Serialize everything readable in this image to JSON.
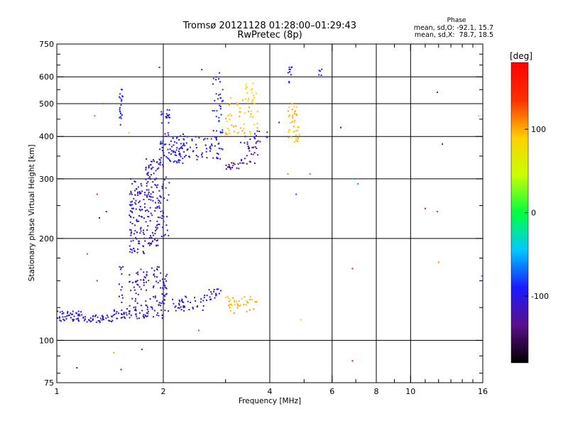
{
  "chart_data": {
    "type": "scatter",
    "title": "Tromsø 20121128 01:28:00–01:29:43",
    "subtitle": "RwPretec (8p)",
    "xlabel": "Frequency [MHz]",
    "ylabel": "Stationary phase Virtual Height [km]",
    "x_scale": "log",
    "y_scale": "log",
    "xlim": [
      1,
      16
    ],
    "ylim": [
      75,
      750
    ],
    "grid": true,
    "x_ticks": [
      {
        "value": 1,
        "label": "1"
      },
      {
        "value": 2,
        "label": "2"
      },
      {
        "value": 4,
        "label": "4"
      },
      {
        "value": 6,
        "label": "6"
      },
      {
        "value": 8,
        "label": "8"
      },
      {
        "value": 10,
        "label": "10"
      },
      {
        "value": 16,
        "label": "16"
      }
    ],
    "x_minor_ticks": [
      3,
      5,
      7,
      9,
      11,
      12,
      13,
      14,
      15
    ],
    "x_grid_lines": [
      2,
      4,
      6,
      8,
      10
    ],
    "y_ticks": [
      {
        "value": 75,
        "label": "75"
      },
      {
        "value": 100,
        "label": "100"
      },
      {
        "value": 200,
        "label": "200"
      },
      {
        "value": 300,
        "label": "300"
      },
      {
        "value": 400,
        "label": "400"
      },
      {
        "value": 500,
        "label": "500"
      },
      {
        "value": 600,
        "label": "600"
      },
      {
        "value": 750,
        "label": "750"
      }
    ],
    "y_minor_ticks": [
      80,
      90,
      125,
      150,
      175,
      250,
      350,
      450,
      550,
      650,
      700
    ],
    "y_grid_lines": [
      100,
      200,
      300,
      400,
      500,
      600
    ],
    "stats": {
      "heading": "Phase",
      "line_o": "mean, sd,O: -92.1, 15.7",
      "line_x": "mean, sd,X:  78.7, 18.5"
    },
    "colorbar": {
      "label": "[deg]",
      "range": [
        -180,
        180
      ],
      "ticks": [
        {
          "value": 100,
          "label": "100"
        },
        {
          "value": 0,
          "label": "0"
        },
        {
          "value": -100,
          "label": "-100"
        }
      ],
      "colors": [
        "#000000",
        "#5a0f8a",
        "#1a1aff",
        "#00c8ff",
        "#00ff40",
        "#c8ff00",
        "#ffd000",
        "#ff3000",
        "#ff0000"
      ]
    },
    "clusters": [
      {
        "x": [
          1.0,
          1.18
        ],
        "y": [
          114,
          122
        ],
        "phase": -100,
        "n": 45,
        "role": "O-mode E trace 1.0–1.2 MHz"
      },
      {
        "x": [
          1.18,
          1.45
        ],
        "y": [
          113,
          119
        ],
        "phase": -105,
        "n": 40,
        "role": "O-mode E trace 1.2–1.45 MHz"
      },
      {
        "x": [
          1.45,
          2.0
        ],
        "y": [
          116,
          124
        ],
        "phase": -110,
        "n": 60,
        "role": "O-mode E trace 1.45–2.0 MHz"
      },
      {
        "x": [
          2.0,
          2.6
        ],
        "y": [
          122,
          135
        ],
        "phase": -105,
        "n": 45,
        "role": "O-mode E trace 2.0–2.6 MHz"
      },
      {
        "x": [
          2.6,
          2.95
        ],
        "y": [
          130,
          142
        ],
        "phase": -100,
        "n": 20,
        "role": "O-mode E trace near 2.8 MHz"
      },
      {
        "x": [
          1.6,
          1.95
        ],
        "y": [
          125,
          165
        ],
        "phase": -115,
        "n": 70,
        "role": "E-layer spread 1.6–1.95 MHz"
      },
      {
        "x": [
          1.95,
          2.05
        ],
        "y": [
          125,
          160
        ],
        "phase": -110,
        "n": 30,
        "role": "E-layer spread near 2 MHz"
      },
      {
        "x": [
          1.6,
          1.78
        ],
        "y": [
          180,
          300
        ],
        "phase": -105,
        "n": 110,
        "role": "F-layer spread 1.6–1.78 MHz"
      },
      {
        "x": [
          1.78,
          1.95
        ],
        "y": [
          190,
          300
        ],
        "phase": -108,
        "n": 80,
        "role": "F-layer spread 1.78–1.95 MHz"
      },
      {
        "x": [
          1.95,
          2.08
        ],
        "y": [
          200,
          330
        ],
        "phase": -100,
        "n": 35,
        "role": "F-layer spread near 2 MHz"
      },
      {
        "x": [
          1.78,
          2.0
        ],
        "y": [
          300,
          345
        ],
        "phase": -100,
        "n": 35,
        "role": "F-layer spread top"
      },
      {
        "x": [
          1.95,
          2.3
        ],
        "y": [
          330,
          410
        ],
        "phase": -95,
        "n": 80,
        "role": "F-layer cluster near 2.1 MHz"
      },
      {
        "x": [
          1.95,
          2.1
        ],
        "y": [
          430,
          480
        ],
        "phase": -95,
        "n": 18,
        "role": "F-layer blob near 2 MHz"
      },
      {
        "x": [
          2.2,
          2.95
        ],
        "y": [
          340,
          400
        ],
        "phase": -95,
        "n": 60,
        "role": "O-mode F trace 2.2–2.95 MHz"
      },
      {
        "x": [
          2.75,
          2.95
        ],
        "y": [
          400,
          620
        ],
        "phase": -90,
        "n": 35,
        "role": "O-mode F2 cusp"
      },
      {
        "x": [
          1.5,
          1.54
        ],
        "y": [
          420,
          560
        ],
        "phase": -95,
        "n": 20,
        "role": "near 1.5 MHz vertical streak"
      },
      {
        "x": [
          1.5,
          1.54
        ],
        "y": [
          120,
          165
        ],
        "phase": -110,
        "n": 12,
        "role": "near 1.5 MHz low streak"
      },
      {
        "x": [
          3.0,
          3.3
        ],
        "y": [
          320,
          340
        ],
        "phase": -130,
        "n": 18,
        "role": "X-mode F trace 3.0–3.3 MHz"
      },
      {
        "x": [
          3.3,
          3.7
        ],
        "y": [
          330,
          400
        ],
        "phase": -130,
        "n": 30,
        "role": "X-mode F trace 3.3–3.7 MHz"
      },
      {
        "x": [
          3.0,
          3.7
        ],
        "y": [
          400,
          520
        ],
        "phase": 95,
        "n": 55,
        "role": "X-mode F trace 3.0–3.7 MHz"
      },
      {
        "x": [
          3.4,
          3.7
        ],
        "y": [
          520,
          580
        ],
        "phase": 80,
        "n": 12,
        "role": "X-mode F2 cusp"
      },
      {
        "x": [
          3.0,
          3.7
        ],
        "y": [
          120,
          135
        ],
        "phase": 100,
        "n": 40,
        "role": "X-mode E trace"
      },
      {
        "x": [
          3.6,
          4.0
        ],
        "y": [
          380,
          420
        ],
        "phase": -110,
        "n": 12,
        "role": "3.6–4.0 MHz cluster"
      },
      {
        "x": [
          4.5,
          4.85
        ],
        "y": [
          380,
          500
        ],
        "phase": 95,
        "n": 40,
        "role": "4.5–4.85 MHz cluster"
      },
      {
        "x": [
          4.5,
          4.65
        ],
        "y": [
          560,
          650
        ],
        "phase": -100,
        "n": 10,
        "role": "4.5 MHz high cluster"
      },
      {
        "x": [
          5.5,
          5.65
        ],
        "y": [
          600,
          640
        ],
        "phase": -100,
        "n": 5,
        "role": "5.5 MHz high cluster"
      }
    ],
    "scatter_points": [
      {
        "x": 1.14,
        "y": 83,
        "phase": -120
      },
      {
        "x": 1.3,
        "y": 270,
        "phase": 160
      },
      {
        "x": 1.32,
        "y": 230,
        "phase": -150
      },
      {
        "x": 1.35,
        "y": 500,
        "phase": 130
      },
      {
        "x": 1.22,
        "y": 180,
        "phase": 130
      },
      {
        "x": 1.38,
        "y": 240,
        "phase": -100
      },
      {
        "x": 1.45,
        "y": 92,
        "phase": 110
      },
      {
        "x": 1.52,
        "y": 82,
        "phase": -110
      },
      {
        "x": 1.6,
        "y": 410,
        "phase": 90
      },
      {
        "x": 1.28,
        "y": 460,
        "phase": 120
      },
      {
        "x": 1.3,
        "y": 150,
        "phase": 160
      },
      {
        "x": 1.74,
        "y": 94,
        "phase": -100
      },
      {
        "x": 1.95,
        "y": 640,
        "phase": -100
      },
      {
        "x": 2.52,
        "y": 107,
        "phase": -60
      },
      {
        "x": 2.57,
        "y": 630,
        "phase": -120
      },
      {
        "x": 4.25,
        "y": 440,
        "phase": -120
      },
      {
        "x": 4.5,
        "y": 310,
        "phase": 110
      },
      {
        "x": 4.75,
        "y": 270,
        "phase": -80
      },
      {
        "x": 4.9,
        "y": 115,
        "phase": 40
      },
      {
        "x": 6.35,
        "y": 425,
        "phase": -100
      },
      {
        "x": 6.85,
        "y": 300,
        "phase": -50
      },
      {
        "x": 6.85,
        "y": 163,
        "phase": 150
      },
      {
        "x": 6.85,
        "y": 87,
        "phase": 170
      },
      {
        "x": 7.1,
        "y": 290,
        "phase": -60
      },
      {
        "x": 11.0,
        "y": 245,
        "phase": 180
      },
      {
        "x": 11.9,
        "y": 240,
        "phase": 140
      },
      {
        "x": 11.9,
        "y": 540,
        "phase": -130
      },
      {
        "x": 12.0,
        "y": 170,
        "phase": 120
      },
      {
        "x": 12.3,
        "y": 380,
        "phase": -120
      },
      {
        "x": 15.6,
        "y": 460,
        "phase": 30
      },
      {
        "x": 15.9,
        "y": 155,
        "phase": -50
      },
      {
        "x": 5.2,
        "y": 310,
        "phase": 120
      }
    ]
  }
}
